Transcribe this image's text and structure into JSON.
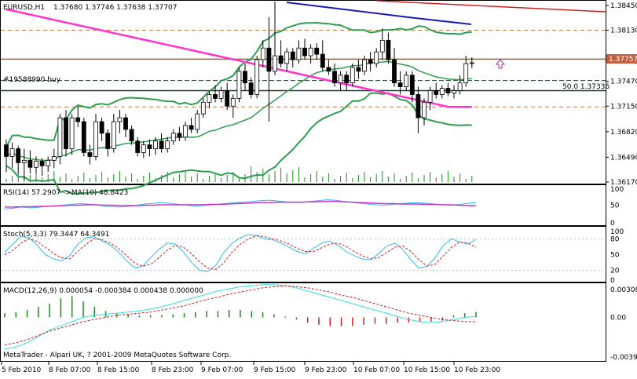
{
  "header": {
    "symbol_timeframe": "EURUSD,H1",
    "ohlc": "1.37680 1.37746 1.37638 1.37707",
    "order_label": "#19588990 buy",
    "fib_label": "50.0 1.37336",
    "current_price_tag": "1.37757"
  },
  "colors": {
    "background": "#ffffff",
    "bull": "#ffffff",
    "bear": "#000000",
    "bollinger": "#2e9e4f",
    "ma_magenta": "#ff33cc",
    "ma_blue": "#1a1ab3",
    "ma_red": "#cc2222",
    "rsi": "#33bbee",
    "rsi_ma": "#cc33cc",
    "stoch_main": "#33bbee",
    "stoch_signal": "#cc2222",
    "macd_signal": "#cc2222",
    "macd_main": "#33dddd",
    "macd_hist_pos": "#1a8c1a",
    "macd_hist_neg": "#cc2222",
    "volume": "#1a8c1a",
    "price_tag": "#c06040",
    "hline_brown": "#996633",
    "hline_dashed": "#cc7744",
    "hline_dark": "#1e3b2e"
  },
  "panels": {
    "rsi_label": "RSI(14) 57.2907   ->MA(10) 48.8423",
    "stoch_label": "Stoch(5,3,3) 79.3447 64.3491",
    "macd_label": "MACD(12,26,9) 0.000054 -0.000384 0.000438 0.000000",
    "copyright": "MetaTrader - Alpari UK, ? 2001-2009 MetaQuotes Software Corp."
  },
  "chart_data": [
    {
      "type": "candlestick",
      "title": "EURUSD,H1",
      "ylim": [
        1.3617,
        1.385
      ],
      "y_ticks": [
        "1.38450",
        "1.38130",
        "1.37470",
        "1.37150",
        "1.36820",
        "1.36490",
        "1.36170"
      ],
      "x_ticks": [
        "5 Feb 2010",
        "8 Feb 07:00",
        "8 Feb 15:00",
        "8 Feb 23:00",
        "9 Feb 07:00",
        "9 Feb 15:00",
        "9 Feb 23:00",
        "10 Feb 07:00",
        "10 Feb 15:00",
        "10 Feb 23:00"
      ],
      "candles": [
        [
          1.3665,
          1.3672,
          1.363,
          1.365
        ],
        [
          1.365,
          1.3668,
          1.3635,
          1.366
        ],
        [
          1.366,
          1.3664,
          1.3628,
          1.3642
        ],
        [
          1.3642,
          1.366,
          1.362,
          1.3645
        ],
        [
          1.3645,
          1.3658,
          1.3628,
          1.3636
        ],
        [
          1.3636,
          1.365,
          1.3628,
          1.3644
        ],
        [
          1.3644,
          1.3648,
          1.3625,
          1.3638
        ],
        [
          1.3638,
          1.365,
          1.363,
          1.3645
        ],
        [
          1.3645,
          1.366,
          1.3635,
          1.365
        ],
        [
          1.365,
          1.3705,
          1.364,
          1.37
        ],
        [
          1.37,
          1.371,
          1.365,
          1.366
        ],
        [
          1.366,
          1.3705,
          1.3652,
          1.37
        ],
        [
          1.37,
          1.3715,
          1.3688,
          1.3695
        ],
        [
          1.3695,
          1.37,
          1.365,
          1.3655
        ],
        [
          1.3655,
          1.3665,
          1.364,
          1.365
        ],
        [
          1.365,
          1.3705,
          1.3645,
          1.3695
        ],
        [
          1.3695,
          1.37,
          1.367,
          1.368
        ],
        [
          1.368,
          1.3685,
          1.365,
          1.366
        ],
        [
          1.366,
          1.3705,
          1.3655,
          1.3695
        ],
        [
          1.3695,
          1.371,
          1.368,
          1.37
        ],
        [
          1.37,
          1.3705,
          1.3675,
          1.3685
        ],
        [
          1.3685,
          1.369,
          1.3665,
          1.367
        ],
        [
          1.367,
          1.3675,
          1.365,
          1.3655
        ],
        [
          1.3655,
          1.367,
          1.3648,
          1.3665
        ],
        [
          1.3665,
          1.3672,
          1.365,
          1.366
        ],
        [
          1.366,
          1.3675,
          1.3652,
          1.367
        ],
        [
          1.367,
          1.368,
          1.3655,
          1.366
        ],
        [
          1.366,
          1.3675,
          1.3655,
          1.367
        ],
        [
          1.367,
          1.3685,
          1.3665,
          1.368
        ],
        [
          1.368,
          1.3688,
          1.367,
          1.3675
        ],
        [
          1.3675,
          1.3695,
          1.367,
          1.369
        ],
        [
          1.369,
          1.37,
          1.368,
          1.3685
        ],
        [
          1.3685,
          1.371,
          1.368,
          1.3705
        ],
        [
          1.3705,
          1.3725,
          1.37,
          1.372
        ],
        [
          1.372,
          1.3735,
          1.3712,
          1.373
        ],
        [
          1.373,
          1.3742,
          1.372,
          1.3725
        ],
        [
          1.3725,
          1.374,
          1.372,
          1.3735
        ],
        [
          1.3735,
          1.3745,
          1.371,
          1.3715
        ],
        [
          1.3715,
          1.373,
          1.37,
          1.3725
        ],
        [
          1.3725,
          1.3765,
          1.372,
          1.376
        ],
        [
          1.376,
          1.377,
          1.3735,
          1.3745
        ],
        [
          1.3745,
          1.3752,
          1.3725,
          1.373
        ],
        [
          1.373,
          1.378,
          1.3725,
          1.3775
        ],
        [
          1.3775,
          1.38,
          1.3765,
          1.379
        ],
        [
          1.379,
          1.383,
          1.3695,
          1.376
        ],
        [
          1.376,
          1.385,
          1.3755,
          1.378
        ],
        [
          1.378,
          1.38,
          1.3765,
          1.377
        ],
        [
          1.377,
          1.379,
          1.376,
          1.3785
        ],
        [
          1.3785,
          1.379,
          1.3765,
          1.3775
        ],
        [
          1.3775,
          1.38,
          1.377,
          1.379
        ],
        [
          1.379,
          1.3802,
          1.3775,
          1.378
        ],
        [
          1.378,
          1.3795,
          1.377,
          1.379
        ],
        [
          1.379,
          1.3796,
          1.3775,
          1.3782
        ],
        [
          1.3782,
          1.38,
          1.376,
          1.3765
        ],
        [
          1.3765,
          1.3775,
          1.3755,
          1.376
        ],
        [
          1.376,
          1.377,
          1.374,
          1.3745
        ],
        [
          1.3745,
          1.376,
          1.3735,
          1.3755
        ],
        [
          1.3755,
          1.376,
          1.3735,
          1.3745
        ],
        [
          1.3745,
          1.377,
          1.374,
          1.3765
        ],
        [
          1.3765,
          1.3775,
          1.375,
          1.376
        ],
        [
          1.376,
          1.378,
          1.3755,
          1.3775
        ],
        [
          1.3775,
          1.3785,
          1.376,
          1.377
        ],
        [
          1.377,
          1.379,
          1.3765,
          1.3785
        ],
        [
          1.3785,
          1.3815,
          1.3775,
          1.38
        ],
        [
          1.38,
          1.381,
          1.377,
          1.3775
        ],
        [
          1.3775,
          1.379,
          1.374,
          1.3745
        ],
        [
          1.3745,
          1.376,
          1.373,
          1.374
        ],
        [
          1.374,
          1.376,
          1.3735,
          1.3755
        ],
        [
          1.3755,
          1.376,
          1.372,
          1.373
        ],
        [
          1.373,
          1.374,
          1.368,
          1.37
        ],
        [
          1.37,
          1.3725,
          1.369,
          1.372
        ],
        [
          1.372,
          1.374,
          1.371,
          1.3735
        ],
        [
          1.3735,
          1.3745,
          1.3725,
          1.373
        ],
        [
          1.373,
          1.3742,
          1.3725,
          1.3738
        ],
        [
          1.3738,
          1.3745,
          1.3728,
          1.3732
        ],
        [
          1.3732,
          1.3742,
          1.3725,
          1.3735
        ],
        [
          1.3735,
          1.3755,
          1.373,
          1.3745
        ],
        [
          1.3745,
          1.378,
          1.374,
          1.377
        ],
        [
          1.377,
          1.3778,
          1.3764,
          1.3771
        ]
      ]
    },
    {
      "type": "line",
      "title": "RSI(14)",
      "ylim": [
        0,
        100
      ],
      "y_ticks": [
        "100",
        "50",
        "0"
      ],
      "series": [
        {
          "name": "RSI(14)",
          "values": [
            40,
            42,
            45,
            43,
            44,
            47,
            48,
            50,
            52,
            54,
            53,
            51,
            48,
            46,
            45,
            47,
            50,
            53,
            55,
            57,
            55,
            52,
            50,
            48,
            49,
            51,
            53,
            55,
            57,
            58,
            60,
            62,
            63,
            61,
            59,
            57,
            58,
            60,
            62,
            64,
            63,
            60,
            58,
            55,
            53,
            51,
            50,
            52,
            54,
            56,
            57,
            55,
            53,
            51,
            50,
            52,
            55,
            57
          ]
        },
        {
          "name": "MA(10)",
          "values": [
            45,
            45,
            46,
            46,
            47,
            47,
            48,
            49,
            50,
            50,
            51,
            51,
            50,
            50,
            49,
            49,
            49,
            50,
            50,
            51,
            51,
            51,
            51,
            51,
            51,
            52,
            52,
            53,
            54,
            55,
            56,
            57,
            57,
            58,
            58,
            58,
            58,
            59,
            59,
            60,
            60,
            59,
            58,
            57,
            56,
            55,
            54,
            54,
            53,
            53,
            53,
            52,
            52,
            51,
            51,
            50,
            49,
            49
          ]
        }
      ]
    },
    {
      "type": "line",
      "title": "Stoch(5,3,3)",
      "ylim": [
        0,
        100
      ],
      "y_ticks": [
        "100",
        "80",
        "50",
        "20",
        "0"
      ],
      "series": [
        {
          "name": "main",
          "values": [
            55,
            70,
            85,
            82,
            68,
            50,
            42,
            38,
            48,
            70,
            82,
            84,
            76,
            68,
            55,
            38,
            25,
            28,
            45,
            60,
            72,
            70,
            55,
            35,
            20,
            18,
            30,
            55,
            72,
            82,
            88,
            86,
            80,
            78,
            72,
            64,
            56,
            52,
            62,
            72,
            76,
            68,
            56,
            48,
            42,
            40,
            52,
            66,
            72,
            60,
            40,
            24,
            28,
            45,
            68,
            80,
            74,
            70,
            79
          ]
        },
        {
          "name": "signal",
          "values": [
            50,
            58,
            72,
            80,
            75,
            64,
            52,
            44,
            42,
            56,
            70,
            80,
            78,
            72,
            62,
            48,
            34,
            28,
            32,
            45,
            58,
            68,
            64,
            52,
            36,
            24,
            22,
            35,
            55,
            70,
            80,
            86,
            84,
            80,
            76,
            70,
            62,
            56,
            56,
            63,
            70,
            72,
            66,
            56,
            48,
            42,
            44,
            54,
            64,
            66,
            56,
            40,
            28,
            32,
            48,
            64,
            74,
            72,
            64
          ]
        }
      ]
    },
    {
      "type": "line",
      "title": "MACD(12,26,9)",
      "ylim": [
        -0.00397,
        0.00308
      ],
      "y_ticks": [
        "0.00308",
        "0.00",
        "-0.00397"
      ],
      "series": [
        {
          "name": "main",
          "values": [
            -0.003,
            -0.0028,
            -0.0024,
            -0.0018,
            -0.0012,
            -0.0008,
            -0.0004,
            0.0,
            0.0002,
            0.0003,
            0.0004,
            0.0005,
            0.0006,
            0.0008,
            0.001,
            0.0013,
            0.0016,
            0.0019,
            0.0022,
            0.0025,
            0.0027,
            0.0029,
            0.003,
            0.0031,
            0.0031,
            0.003,
            0.0028,
            0.0025,
            0.0022,
            0.0019,
            0.0016,
            0.0013,
            0.001,
            0.0007,
            0.0004,
            0.0001,
            -0.0002,
            -0.0004,
            -0.0005,
            -0.0004,
            -0.0002,
            0.0,
            0.0001
          ]
        },
        {
          "name": "signal",
          "values": [
            -0.0026,
            -0.0024,
            -0.0021,
            -0.0017,
            -0.0013,
            -0.001,
            -0.0007,
            -0.0004,
            -0.0002,
            0.0,
            0.0002,
            0.0003,
            0.0004,
            0.0005,
            0.0007,
            0.0009,
            0.0011,
            0.0014,
            0.0017,
            0.0019,
            0.0022,
            0.0024,
            0.0026,
            0.0028,
            0.0029,
            0.003,
            0.0029,
            0.0028,
            0.0026,
            0.0024,
            0.0021,
            0.0019,
            0.0016,
            0.0013,
            0.001,
            0.0007,
            0.0004,
            0.0002,
            0.0,
            -0.0002,
            -0.0003,
            -0.0004,
            -0.0004
          ]
        }
      ],
      "histogram": [
        0.0004,
        0.0005,
        0.0007,
        0.001,
        0.0013,
        0.0018,
        0.002,
        0.0015,
        0.001,
        0.0006,
        0.0004,
        0.0003,
        0.0002,
        0.0002,
        0.0002,
        0.0003,
        0.0004,
        0.0005,
        0.0006,
        0.0006,
        0.0007,
        0.0007,
        0.0006,
        0.0005,
        0.0003,
        0.0001,
        -0.0002,
        -0.0005,
        -0.0007,
        -0.0008,
        -0.0008,
        -0.0008,
        -0.0007,
        -0.0006,
        -0.0006,
        -0.0005,
        -0.0005,
        -0.0004,
        -0.0004,
        -0.0003,
        0.0002,
        0.0004,
        0.0005
      ]
    }
  ]
}
